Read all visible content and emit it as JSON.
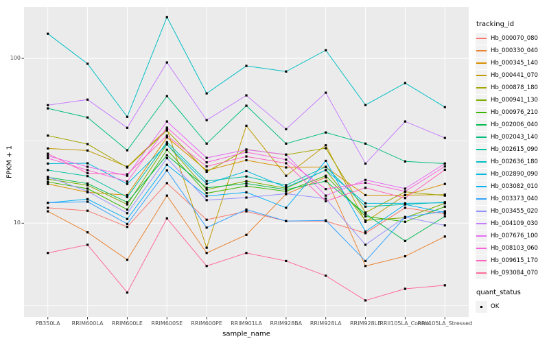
{
  "chart_data": {
    "type": "line",
    "title": "",
    "xlabel": "sample_name",
    "ylabel": "FPKM + 1",
    "y_scale": "log10",
    "ylim": [
      2.7,
      205.3
    ],
    "y_ticks": [
      10,
      100
    ],
    "y_minor_gridlines": [
      3.162,
      31.62
    ],
    "grid": "on",
    "legend_position": "right",
    "legend_title": "tracking_id",
    "point_marker": "black-square",
    "point_color": "#000000",
    "categories": [
      "PB350LA",
      "RRIM600LA",
      "RRIM600LE",
      "RRIM600SE",
      "RRIM600PE",
      "RRIM901LA",
      "RRIM928BA",
      "RRIM928LA",
      "RRIM928LE",
      "RRII105LA_Control",
      "RRII105LA_Stressed"
    ],
    "series": [
      {
        "name": "Hb_000070_080",
        "color": "#F8766D",
        "values": [
          12.4,
          11.9,
          9.5,
          17.5,
          10.5,
          11.8,
          10.3,
          10.3,
          8.7,
          12.4,
          11.4
        ]
      },
      {
        "name": "Hb_000330_040",
        "color": "#EA8331",
        "values": [
          11.8,
          8.8,
          6.0,
          14.7,
          6.6,
          8.5,
          15.0,
          19.0,
          5.5,
          6.3,
          8.3
        ]
      },
      {
        "name": "Hb_000345_140",
        "color": "#D89000",
        "values": [
          17.3,
          15.4,
          14.8,
          33.2,
          20.9,
          24.1,
          21.8,
          21.9,
          14.8,
          14.8,
          17.3
        ]
      },
      {
        "name": "Hb_000441_070",
        "color": "#C09B00",
        "values": [
          28.4,
          27.6,
          22.0,
          37.2,
          7.1,
          39.0,
          19.4,
          29.7,
          10.2,
          14.8,
          14.9
        ]
      },
      {
        "name": "Hb_000878_180",
        "color": "#A3A500",
        "values": [
          34.0,
          30.2,
          21.8,
          36.5,
          20.5,
          28.0,
          26.0,
          28.5,
          11.6,
          15.5,
          14.7
        ]
      },
      {
        "name": "Hb_000941_130",
        "color": "#7CAE00",
        "values": [
          18.5,
          17.0,
          13.0,
          30.1,
          16.0,
          18.0,
          16.3,
          21.0,
          10.4,
          10.8,
          13.2
        ]
      },
      {
        "name": "Hb_000976_210",
        "color": "#39B600",
        "values": [
          17.8,
          16.2,
          12.1,
          27.9,
          15.2,
          16.8,
          15.6,
          19.4,
          11.0,
          10.2,
          12.6
        ]
      },
      {
        "name": "Hb_002006_040",
        "color": "#00BB4E",
        "values": [
          19.0,
          17.4,
          13.4,
          25.8,
          16.4,
          17.4,
          16.0,
          18.0,
          11.4,
          7.8,
          11.0
        ]
      },
      {
        "name": "Hb_002043_140",
        "color": "#00BF7D",
        "values": [
          49.7,
          43.8,
          27.7,
          59.0,
          30.4,
          51.6,
          30.4,
          35.5,
          30.4,
          23.7,
          23.0
        ]
      },
      {
        "name": "Hb_002615_090",
        "color": "#00C1A3",
        "values": [
          21.0,
          19.3,
          14.4,
          31.0,
          18.0,
          19.2,
          17.0,
          22.0,
          12.6,
          13.0,
          13.4
        ]
      },
      {
        "name": "Hb_002636_180",
        "color": "#00BFC4",
        "values": [
          141.0,
          92.7,
          44.2,
          178.0,
          61.3,
          90.0,
          83.2,
          112.0,
          52.1,
          70.8,
          50.6
        ]
      },
      {
        "name": "Hb_002890_090",
        "color": "#00BADE",
        "values": [
          23.0,
          23.1,
          17.3,
          30.0,
          17.3,
          20.7,
          16.5,
          21.0,
          13.2,
          13.2,
          13.3
        ]
      },
      {
        "name": "Hb_003082_010",
        "color": "#00B0F6",
        "values": [
          13.3,
          14.0,
          10.6,
          22.6,
          14.6,
          15.4,
          12.4,
          23.9,
          8.9,
          13.0,
          11.6
        ]
      },
      {
        "name": "Hb_003373_040",
        "color": "#35A2FF",
        "values": [
          13.3,
          13.5,
          9.9,
          20.9,
          9.4,
          12.1,
          10.3,
          10.4,
          5.9,
          10.9,
          11.8
        ]
      },
      {
        "name": "Hb_003455_020",
        "color": "#9590FF",
        "values": [
          19.1,
          15.6,
          11.5,
          24.8,
          13.8,
          14.3,
          15.1,
          14.1,
          7.4,
          10.9,
          9.7
        ]
      },
      {
        "name": "Hb_004109_030",
        "color": "#C77CFF",
        "values": [
          52.0,
          56.2,
          37.9,
          94.4,
          42.2,
          59.6,
          37.2,
          61.9,
          23.0,
          41.4,
          32.9
        ]
      },
      {
        "name": "Hb_007676_100",
        "color": "#E76BF3",
        "values": [
          25.6,
          22.0,
          19.4,
          41.4,
          24.9,
          27.9,
          26.1,
          14.7,
          18.3,
          16.2,
          23.0
        ]
      },
      {
        "name": "Hb_008103_060",
        "color": "#FA62DB",
        "values": [
          24.8,
          21.0,
          17.9,
          38.0,
          23.4,
          27.0,
          24.3,
          16.1,
          17.6,
          15.6,
          22.1
        ]
      },
      {
        "name": "Hb_009615_170",
        "color": "#FF62BC",
        "values": [
          26.4,
          20.1,
          19.8,
          34.0,
          22.1,
          25.4,
          23.1,
          13.6,
          16.4,
          14.2,
          21.1
        ]
      },
      {
        "name": "Hb_093084_070",
        "color": "#FF6A98",
        "values": [
          6.6,
          7.4,
          3.8,
          10.7,
          5.5,
          6.6,
          5.9,
          4.8,
          3.4,
          4.0,
          4.2
        ]
      }
    ],
    "quant_legend": {
      "title": "quant_status",
      "items": [
        {
          "label": "OK",
          "marker": "black-square"
        }
      ]
    }
  }
}
